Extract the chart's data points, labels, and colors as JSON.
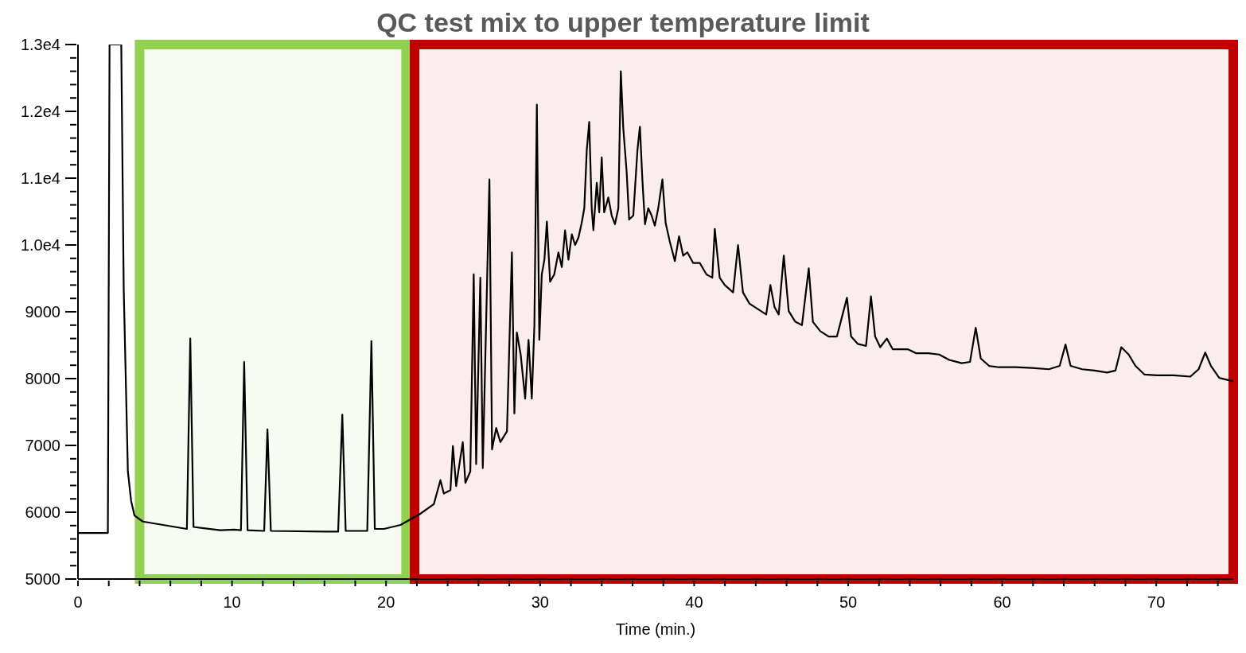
{
  "chart_data": {
    "type": "line",
    "title": "QC test mix to upper temperature limit",
    "xlabel": "Time (min.)",
    "xlim": [
      0,
      75
    ],
    "xticks": [
      0,
      {
        "value": 2,
        "label": null
      },
      {
        "value": 4,
        "label": null
      },
      {
        "value": 6,
        "label": null
      },
      {
        "value": 8,
        "label": null
      },
      10,
      {
        "value": 12,
        "label": null
      },
      {
        "value": 14,
        "label": null
      },
      {
        "value": 16,
        "label": null
      },
      {
        "value": 18,
        "label": null
      },
      20,
      {
        "value": 22,
        "label": null
      },
      {
        "value": 24,
        "label": null
      },
      {
        "value": 26,
        "label": null
      },
      {
        "value": 28,
        "label": null
      },
      30,
      {
        "value": 32,
        "label": null
      },
      {
        "value": 34,
        "label": null
      },
      {
        "value": 36,
        "label": null
      },
      {
        "value": 38,
        "label": null
      },
      40,
      {
        "value": 42,
        "label": null
      },
      {
        "value": 44,
        "label": null
      },
      {
        "value": 46,
        "label": null
      },
      {
        "value": 48,
        "label": null
      },
      50,
      {
        "value": 52,
        "label": null
      },
      {
        "value": 54,
        "label": null
      },
      {
        "value": 56,
        "label": null
      },
      {
        "value": 58,
        "label": null
      },
      60,
      {
        "value": 62,
        "label": null
      },
      {
        "value": 64,
        "label": null
      },
      {
        "value": 66,
        "label": null
      },
      {
        "value": 68,
        "label": null
      },
      70,
      {
        "value": 72,
        "label": null
      },
      {
        "value": 74,
        "label": null
      }
    ],
    "ylim": [
      5000,
      13000
    ],
    "yticks": [
      5000,
      {
        "value": 5200,
        "label": null
      },
      {
        "value": 5400,
        "label": null
      },
      {
        "value": 5600,
        "label": null
      },
      {
        "value": 5800,
        "label": null
      },
      6000,
      {
        "value": 6200,
        "label": null
      },
      {
        "value": 6400,
        "label": null
      },
      {
        "value": 6600,
        "label": null
      },
      {
        "value": 6800,
        "label": null
      },
      7000,
      {
        "value": 7200,
        "label": null
      },
      {
        "value": 7400,
        "label": null
      },
      {
        "value": 7600,
        "label": null
      },
      {
        "value": 7800,
        "label": null
      },
      8000,
      {
        "value": 8200,
        "label": null
      },
      {
        "value": 8400,
        "label": null
      },
      {
        "value": 8600,
        "label": null
      },
      {
        "value": 8800,
        "label": null
      },
      9000,
      {
        "value": 9200,
        "label": null
      },
      {
        "value": 9400,
        "label": null
      },
      {
        "value": 9600,
        "label": null
      },
      {
        "value": 9800,
        "label": null
      },
      {
        "value": 10000,
        "label": "1.0e4"
      },
      {
        "value": 10200,
        "label": null
      },
      {
        "value": 10400,
        "label": null
      },
      {
        "value": 10600,
        "label": null
      },
      {
        "value": 10800,
        "label": null
      },
      {
        "value": 11000,
        "label": "1.1e4"
      },
      {
        "value": 11200,
        "label": null
      },
      {
        "value": 11400,
        "label": null
      },
      {
        "value": 11600,
        "label": null
      },
      {
        "value": 11800,
        "label": null
      },
      {
        "value": 12000,
        "label": "1.2e4"
      },
      {
        "value": 12200,
        "label": null
      },
      {
        "value": 12400,
        "label": null
      },
      {
        "value": 12600,
        "label": null
      },
      {
        "value": 12800,
        "label": null
      },
      {
        "value": 13000,
        "label": "1.3e4"
      }
    ],
    "marker": "none",
    "bands": [
      {
        "axis": "x",
        "from": 4.0,
        "to": 21.3,
        "color": "#92d050"
      },
      {
        "axis": "x",
        "from": 21.85,
        "to": 75,
        "color": "#c00000"
      }
    ],
    "series": [
      {
        "color": "#000000",
        "x": [
          0,
          1.94,
          2.05,
          2.81,
          2.97,
          3.24,
          3.45,
          3.67,
          4.21,
          7.07,
          7.29,
          7.5,
          9.23,
          10.15,
          10.58,
          10.79,
          11.01,
          12.09,
          12.3,
          12.52,
          16.08,
          16.89,
          17.16,
          17.38,
          18.78,
          19.05,
          19.27,
          19.86,
          20.94,
          22.18,
          23.1,
          23.53,
          23.75,
          24.18,
          24.34,
          24.55,
          24.98,
          25.15,
          25.47,
          25.69,
          25.85,
          26.12,
          26.28,
          26.71,
          26.88,
          27.15,
          27.42,
          27.85,
          28.17,
          28.33,
          28.49,
          28.74,
          29.03,
          29.25,
          29.46,
          29.63,
          29.79,
          29.95,
          30.11,
          30.28,
          30.44,
          30.65,
          30.92,
          31.19,
          31.41,
          31.62,
          31.84,
          32.06,
          32.27,
          32.49,
          32.7,
          32.87,
          33.03,
          33.19,
          33.35,
          33.46,
          33.68,
          33.84,
          34.0,
          34.16,
          34.43,
          34.65,
          34.86,
          35.08,
          35.24,
          35.4,
          35.62,
          35.78,
          36.05,
          36.32,
          36.48,
          36.64,
          36.81,
          37.02,
          37.24,
          37.45,
          37.67,
          37.94,
          38.15,
          38.42,
          38.75,
          39.02,
          39.29,
          39.56,
          39.94,
          40.37,
          40.8,
          41.18,
          41.34,
          41.66,
          41.99,
          42.53,
          42.85,
          43.17,
          43.6,
          44.14,
          44.68,
          44.95,
          45.22,
          45.49,
          45.82,
          46.14,
          46.57,
          47.0,
          47.44,
          47.71,
          48.19,
          48.73,
          49.27,
          49.92,
          50.19,
          50.62,
          51.16,
          51.48,
          51.75,
          52.08,
          52.51,
          52.89,
          53.32,
          53.86,
          54.4,
          55.21,
          55.91,
          56.56,
          57.37,
          57.91,
          58.28,
          58.61,
          59.15,
          59.79,
          60.87,
          61.95,
          63.03,
          63.73,
          64.11,
          64.44,
          65.19,
          66.0,
          66.81,
          67.35,
          67.73,
          68.21,
          68.65,
          69.24,
          70.05,
          71.13,
          72.21,
          72.75,
          73.18,
          73.55,
          74.09,
          75
        ],
        "values": [
          5690,
          5690,
          13000,
          13000,
          9340,
          6610,
          6170,
          5950,
          5860,
          5750,
          8600,
          5780,
          5730,
          5740,
          5730,
          8250,
          5730,
          5720,
          7240,
          5720,
          5710,
          5710,
          7460,
          5720,
          5720,
          8560,
          5750,
          5750,
          5810,
          5970,
          6120,
          6480,
          6280,
          6330,
          6990,
          6390,
          7050,
          6440,
          6610,
          9560,
          6720,
          9510,
          6660,
          10980,
          6940,
          7260,
          7050,
          7210,
          9890,
          7480,
          8690,
          8360,
          7700,
          8580,
          7700,
          8800,
          12100,
          8580,
          9560,
          9780,
          10350,
          9450,
          9560,
          9890,
          9670,
          10220,
          9780,
          10160,
          10000,
          10110,
          10330,
          10550,
          11420,
          11840,
          10550,
          10220,
          10930,
          10490,
          11310,
          10490,
          10710,
          10440,
          10310,
          10550,
          12600,
          11750,
          11090,
          10380,
          10440,
          11420,
          11770,
          10980,
          10310,
          10550,
          10440,
          10290,
          10550,
          10980,
          10330,
          10050,
          9760,
          10130,
          9840,
          9890,
          9730,
          9730,
          9560,
          9510,
          10240,
          9510,
          9400,
          9290,
          10000,
          9290,
          9120,
          9040,
          8960,
          9400,
          9070,
          8960,
          9840,
          9010,
          8850,
          8800,
          9650,
          8850,
          8710,
          8630,
          8630,
          9210,
          8630,
          8520,
          8490,
          9230,
          8630,
          8470,
          8600,
          8440,
          8440,
          8440,
          8380,
          8380,
          8360,
          8280,
          8230,
          8250,
          8760,
          8300,
          8190,
          8170,
          8170,
          8160,
          8140,
          8190,
          8510,
          8190,
          8140,
          8120,
          8090,
          8120,
          8470,
          8360,
          8190,
          8060,
          8050,
          8050,
          8030,
          8140,
          8390,
          8190,
          8010,
          7960
        ]
      }
    ]
  }
}
